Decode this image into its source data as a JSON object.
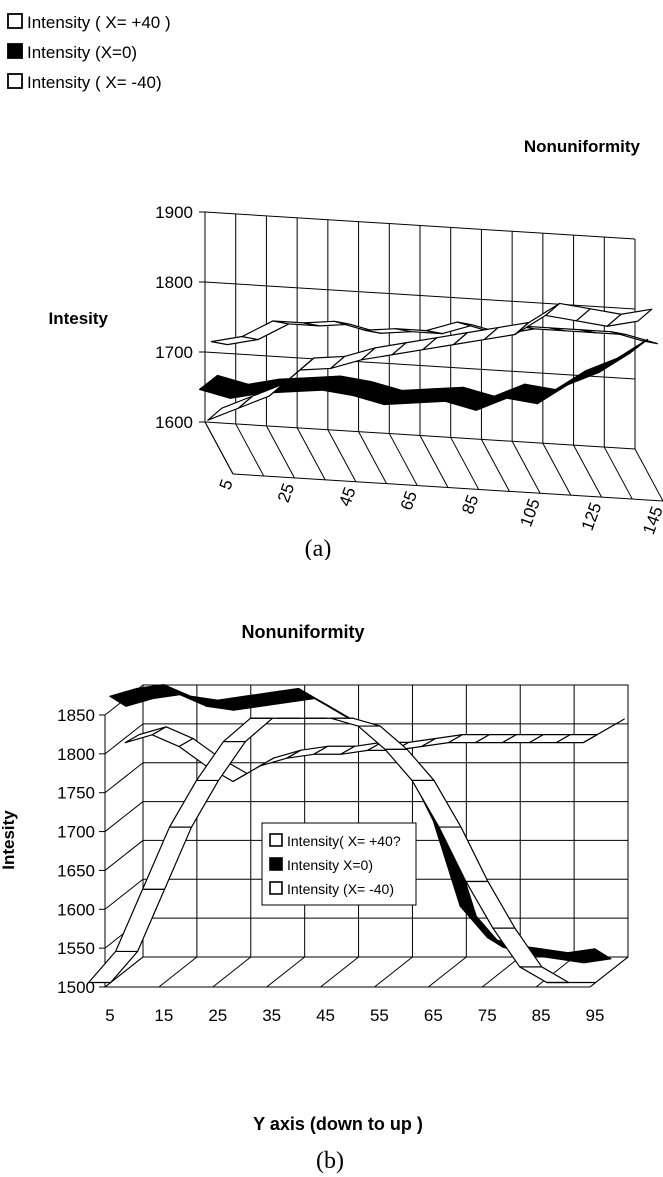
{
  "chart_data": [
    {
      "type": "line",
      "style": "3d-ribbon",
      "title": "Nonuniformity",
      "ylabel": "Intesity",
      "xlabel": "",
      "caption": "(a)",
      "legend_position": "top-left",
      "grid": true,
      "ylim": [
        1600,
        1900
      ],
      "y_ticks": [
        "1600",
        "1700",
        "1800",
        "1900"
      ],
      "x_ticks": [
        "5",
        "25",
        "45",
        "65",
        "85",
        "105",
        "125",
        "145"
      ],
      "x": [
        5,
        15,
        25,
        35,
        45,
        55,
        65,
        75,
        85,
        95,
        105,
        115,
        125,
        135,
        145
      ],
      "legend": [
        "Intensity ( X= +40 )",
        "Intensity  (X=0)",
        "Intensity  ( X= -40)"
      ],
      "series": [
        {
          "name": "Intensity ( X= +40 )",
          "fill": "#ffffff",
          "values": [
            1770,
            1780,
            1805,
            1805,
            1810,
            1800,
            1805,
            1805,
            1820,
            1810,
            1820,
            1820,
            1820,
            1820,
            1810
          ]
        },
        {
          "name": "Intensity  (X=0)",
          "fill": "#000000",
          "values": [
            1700,
            1690,
            1700,
            1705,
            1710,
            1705,
            1695,
            1700,
            1705,
            1695,
            1715,
            1710,
            1740,
            1760,
            1790
          ]
        },
        {
          "name": "Intensity  ( X= -40)",
          "fill": "#ffffff",
          "values": [
            1610,
            1630,
            1650,
            1690,
            1695,
            1710,
            1720,
            1730,
            1740,
            1750,
            1760,
            1790,
            1785,
            1780,
            1790
          ]
        }
      ]
    },
    {
      "type": "line",
      "style": "3d-ribbon",
      "title": "Nonuniformity",
      "ylabel": "Intesity",
      "xlabel": "Y axis (down to up )",
      "caption": "(b)",
      "legend_position": "center",
      "grid": true,
      "ylim": [
        1500,
        1850
      ],
      "y_ticks": [
        "1500",
        "1550",
        "1600",
        "1650",
        "1700",
        "1750",
        "1800",
        "1850"
      ],
      "x_ticks": [
        "5",
        "15",
        "25",
        "35",
        "45",
        "55",
        "65",
        "75",
        "85",
        "95"
      ],
      "x": [
        5,
        10,
        15,
        20,
        25,
        30,
        35,
        40,
        45,
        50,
        55,
        60,
        65,
        70,
        75,
        80,
        85,
        90,
        95
      ],
      "legend": [
        "Intensity( X= +40?",
        "Intensity X=0)",
        "Intensity (X= -40)"
      ],
      "series": [
        {
          "name": "Intensity( X= +40?",
          "fill": "#ffffff",
          "values": [
            1500,
            1540,
            1620,
            1700,
            1760,
            1810,
            1840,
            1840,
            1840,
            1840,
            1830,
            1800,
            1760,
            1700,
            1630,
            1570,
            1520,
            1500,
            1500
          ]
        },
        {
          "name": "Intensity X=0)",
          "fill": "#000000",
          "values": [
            1840,
            1850,
            1855,
            1840,
            1835,
            1840,
            1845,
            1850,
            1830,
            1810,
            1790,
            1750,
            1680,
            1570,
            1530,
            1520,
            1515,
            1510,
            1515
          ]
        },
        {
          "name": "Intensity (X= -40)",
          "fill": "#ffffff",
          "values": [
            1790,
            1800,
            1785,
            1760,
            1740,
            1760,
            1770,
            1775,
            1775,
            1780,
            1780,
            1785,
            1790,
            1790,
            1790,
            1790,
            1790,
            1790,
            1810
          ]
        }
      ]
    }
  ]
}
